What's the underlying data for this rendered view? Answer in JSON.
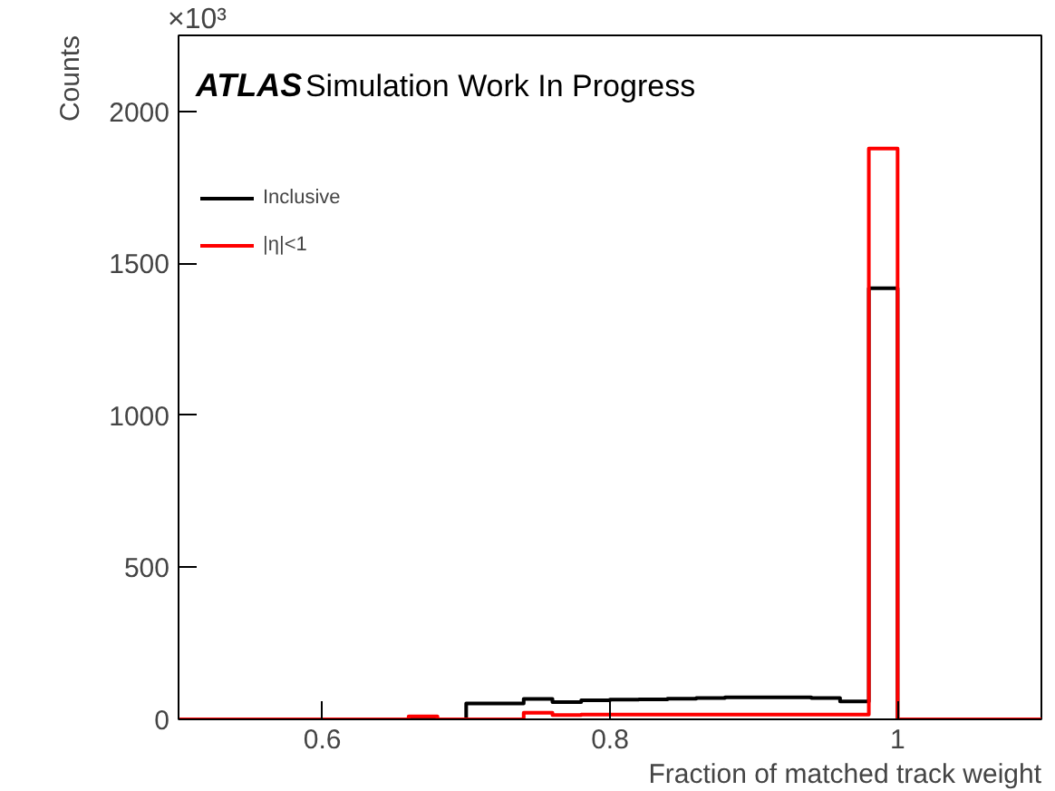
{
  "chart_data": {
    "type": "histogram",
    "xlabel": "Fraction of matched track weight",
    "ylabel": "Counts",
    "annotations": [
      "×10³",
      "ATLAS",
      "Simulation Work In Progress"
    ],
    "bins": [
      0.5,
      0.52,
      0.54,
      0.56,
      0.58,
      0.6,
      0.62,
      0.64,
      0.66,
      0.68,
      0.7,
      0.72,
      0.74,
      0.76,
      0.78,
      0.8,
      0.82,
      0.84,
      0.86,
      0.88,
      0.9,
      0.92,
      0.94,
      0.96,
      0.98,
      1.0,
      1.02,
      1.04,
      1.06,
      1.08,
      1.1
    ],
    "series": [
      {
        "name": "Inclusive",
        "color": "#000000",
        "values": [
          0,
          0,
          0,
          0,
          0,
          0,
          0,
          0,
          3,
          0,
          52,
          52,
          67,
          57,
          63,
          65,
          66,
          68,
          70,
          72,
          72,
          72,
          70,
          59,
          1418,
          0,
          0,
          0,
          0,
          0
        ]
      },
      {
        "name": "|η|<1",
        "color": "#ff0000",
        "values": [
          0,
          0,
          0,
          0,
          0,
          0,
          0,
          0,
          10,
          0,
          0,
          0,
          22,
          14,
          16,
          16,
          16,
          16,
          16,
          16,
          16,
          16,
          16,
          16,
          1878,
          0,
          0,
          0,
          0,
          0
        ]
      }
    ],
    "xlim": [
      0.5,
      1.1
    ],
    "ylim": [
      0,
      2250
    ],
    "xticks": [
      0.6,
      0.8,
      1
    ],
    "yticks": [
      0,
      500,
      1000,
      1500,
      2000
    ],
    "grid": false,
    "legend": "top left"
  }
}
